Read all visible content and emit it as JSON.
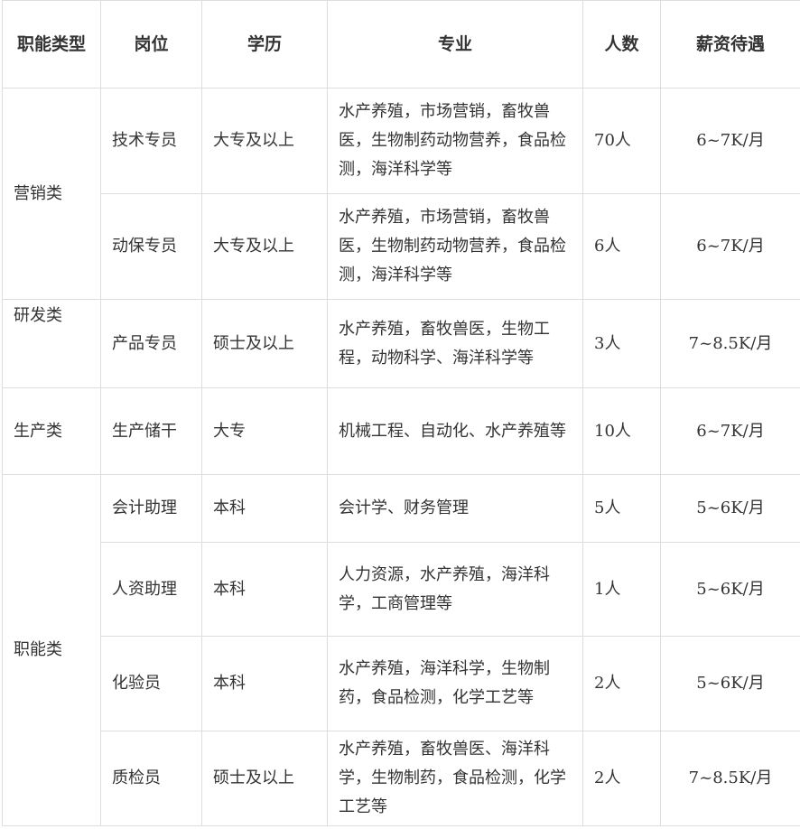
{
  "headers": [
    "职能类型",
    "岗位",
    "学历",
    "专业",
    "人数",
    "薪资待遇"
  ],
  "groups": [
    {
      "category": "营销类",
      "rows": [
        {
          "position": "技术专员",
          "education": "大专及以上",
          "major": "水产养殖，市场营销，畜牧兽医，生物制药动物营养，食品检测，海洋科学等",
          "count": "70人",
          "salary": "6~7K/月"
        },
        {
          "position": "动保专员",
          "education": "大专及以上",
          "major": "水产养殖，市场营销，畜牧兽医，生物制药动物营养，食品检测，海洋科学等",
          "count": "6人",
          "salary": "6~7K/月"
        }
      ]
    },
    {
      "category": "研发类",
      "rows": [
        {
          "position": "产品专员",
          "education": "硕士及以上",
          "major": "水产养殖，畜牧兽医，生物工程，动物科学、海洋科学等",
          "count": "3人",
          "salary": "7~8.5K/月"
        }
      ]
    },
    {
      "category": "生产类",
      "rows": [
        {
          "position": "生产储干",
          "education": "大专",
          "major": "机械工程、自动化、水产养殖等",
          "count": "10人",
          "salary": "6~7K/月"
        }
      ]
    },
    {
      "category": "职能类",
      "rows": [
        {
          "position": "会计助理",
          "education": "本科",
          "major": "会计学、财务管理",
          "count": "5人",
          "salary": "5~6K/月"
        },
        {
          "position": "人资助理",
          "education": "本科",
          "major": "人力资源，水产养殖，海洋科学，工商管理等",
          "count": "1人",
          "salary": "5~6K/月"
        },
        {
          "position": "化验员",
          "education": "本科",
          "major": "水产养殖，海洋科学，生物制药，食品检测，化学工艺等",
          "count": "2人",
          "salary": "5~6K/月"
        },
        {
          "position": "质检员",
          "education": "硕士及以上",
          "major": "水产养殖，畜牧兽医、海洋科学，生物制药，食品检测，化学工艺等",
          "count": "2人",
          "salary": "7~8.5K/月"
        }
      ]
    }
  ]
}
